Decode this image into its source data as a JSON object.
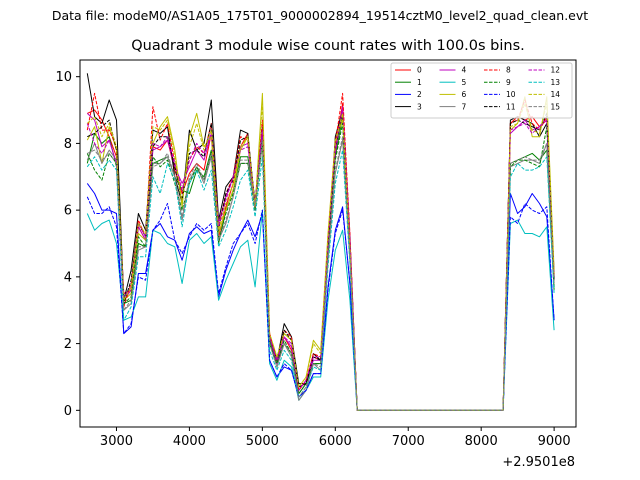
{
  "figure": {
    "suptitle": "Data file: modeM0/AS1A05_175T01_9000002894_19514cztM0_level2_quad_clean.evt",
    "offset_label": "+2.9501e8"
  },
  "chart_data": {
    "type": "line",
    "title": "Quadrant 3 module wise count rates with 100.0s bins.",
    "xlabel": "",
    "ylabel": "",
    "x_offset": 295010000,
    "xlim": [
      2500,
      9300
    ],
    "ylim": [
      -0.5,
      10.5
    ],
    "xticks": [
      3000,
      4000,
      5000,
      6000,
      7000,
      8000,
      9000
    ],
    "yticks": [
      0,
      2,
      4,
      6,
      8,
      10
    ],
    "legend": {
      "position": "top-right",
      "ncol": 4
    },
    "x": [
      2600,
      2700,
      2800,
      2900,
      3000,
      3100,
      3200,
      3300,
      3400,
      3500,
      3600,
      3700,
      3800,
      3900,
      4000,
      4100,
      4200,
      4300,
      4400,
      4500,
      4600,
      4700,
      4800,
      4900,
      5000,
      5100,
      5200,
      5300,
      5400,
      5500,
      5600,
      5700,
      5800,
      5900,
      6000,
      6100,
      6200,
      6300,
      6400,
      6500,
      6600,
      6700,
      6800,
      6900,
      7000,
      7100,
      7200,
      7300,
      7400,
      7500,
      7600,
      7700,
      7800,
      7900,
      8000,
      8100,
      8200,
      8300,
      8400,
      8500,
      8600,
      8700,
      8800,
      8900,
      9000
    ],
    "series": [
      {
        "name": "0",
        "color": "#ff0000",
        "dash": "solid",
        "values": [
          8.9,
          9.0,
          8.7,
          8.2,
          7.6,
          3.5,
          3.6,
          5.5,
          5.1,
          7.9,
          7.8,
          8.1,
          7.2,
          6.5,
          7.1,
          7.4,
          7.2,
          8.3,
          5.2,
          6.1,
          6.8,
          7.9,
          8.3,
          6.0,
          8.4,
          2.3,
          1.5,
          2.2,
          1.8,
          0.6,
          0.9,
          1.6,
          1.5,
          5.0,
          7.8,
          9.2,
          5.2,
          0.0,
          0.0,
          0.0,
          0.0,
          0.0,
          0.0,
          0.0,
          0.0,
          0.0,
          0.0,
          0.0,
          0.0,
          0.0,
          0.0,
          0.0,
          0.0,
          0.0,
          0.0,
          0.0,
          0.0,
          0.0,
          8.6,
          8.8,
          8.7,
          8.8,
          8.5,
          8.7,
          4.0
        ]
      },
      {
        "name": "1",
        "color": "#008000",
        "dash": "solid",
        "values": [
          7.4,
          8.3,
          8.0,
          8.2,
          7.3,
          3.2,
          3.3,
          5.0,
          4.9,
          7.4,
          7.5,
          7.6,
          7.0,
          6.6,
          6.5,
          7.2,
          7.0,
          7.8,
          5.0,
          6.0,
          6.6,
          7.6,
          7.6,
          6.3,
          8.1,
          2.1,
          1.4,
          2.0,
          1.7,
          0.5,
          0.8,
          1.4,
          1.4,
          4.9,
          7.6,
          8.8,
          5.0,
          0.0,
          0.0,
          0.0,
          0.0,
          0.0,
          0.0,
          0.0,
          0.0,
          0.0,
          0.0,
          0.0,
          0.0,
          0.0,
          0.0,
          0.0,
          0.0,
          0.0,
          0.0,
          0.0,
          0.0,
          0.0,
          7.4,
          7.5,
          7.6,
          7.7,
          7.5,
          7.8,
          3.6
        ]
      },
      {
        "name": "2",
        "color": "#0000ff",
        "dash": "solid",
        "values": [
          6.8,
          6.5,
          6.0,
          6.0,
          5.9,
          2.3,
          2.5,
          4.1,
          4.1,
          5.4,
          5.6,
          5.2,
          5.1,
          4.5,
          5.3,
          5.5,
          5.3,
          5.4,
          3.4,
          4.2,
          4.8,
          5.3,
          5.7,
          5.2,
          5.9,
          1.5,
          1.0,
          1.3,
          1.2,
          0.4,
          0.6,
          1.1,
          1.1,
          3.7,
          5.4,
          6.1,
          3.8,
          0.0,
          0.0,
          0.0,
          0.0,
          0.0,
          0.0,
          0.0,
          0.0,
          0.0,
          0.0,
          0.0,
          0.0,
          0.0,
          0.0,
          0.0,
          0.0,
          0.0,
          0.0,
          0.0,
          0.0,
          0.0,
          6.5,
          5.9,
          6.1,
          6.5,
          6.2,
          5.8,
          2.7
        ]
      },
      {
        "name": "3",
        "color": "#000000",
        "dash": "solid",
        "values": [
          10.1,
          8.8,
          8.6,
          9.3,
          8.7,
          3.3,
          4.2,
          5.9,
          5.4,
          8.4,
          8.3,
          8.5,
          7.0,
          6.2,
          8.4,
          7.8,
          8.0,
          9.3,
          5.7,
          6.7,
          7.0,
          8.4,
          8.3,
          6.1,
          8.5,
          2.2,
          1.5,
          2.6,
          2.2,
          0.8,
          0.8,
          1.7,
          1.5,
          4.8,
          8.2,
          9.0,
          5.0,
          0.0,
          0.0,
          0.0,
          0.0,
          0.0,
          0.0,
          0.0,
          0.0,
          0.0,
          0.0,
          0.0,
          0.0,
          0.0,
          0.0,
          0.0,
          0.0,
          0.0,
          0.0,
          0.0,
          0.0,
          0.0,
          8.7,
          8.8,
          8.7,
          8.6,
          8.2,
          8.6,
          3.9
        ]
      },
      {
        "name": "4",
        "color": "#bf00bf",
        "dash": "solid",
        "values": [
          8.9,
          8.7,
          7.9,
          8.1,
          7.4,
          3.3,
          3.6,
          5.5,
          5.1,
          7.8,
          7.9,
          8.1,
          7.3,
          6.8,
          7.3,
          7.8,
          7.5,
          8.3,
          5.6,
          6.4,
          7.0,
          7.9,
          8.0,
          6.1,
          8.4,
          2.2,
          1.4,
          2.2,
          1.9,
          0.6,
          0.9,
          1.5,
          1.5,
          5.0,
          7.7,
          9.1,
          5.2,
          0.0,
          0.0,
          0.0,
          0.0,
          0.0,
          0.0,
          0.0,
          0.0,
          0.0,
          0.0,
          0.0,
          0.0,
          0.0,
          0.0,
          0.0,
          0.0,
          0.0,
          0.0,
          0.0,
          0.0,
          0.0,
          8.3,
          8.5,
          8.7,
          8.4,
          8.5,
          8.8,
          4.1
        ]
      },
      {
        "name": "5",
        "color": "#00bfbf",
        "dash": "solid",
        "values": [
          5.9,
          5.4,
          5.6,
          5.7,
          5.0,
          2.7,
          2.8,
          3.4,
          3.4,
          5.4,
          5.3,
          5.0,
          4.9,
          3.8,
          5.1,
          5.3,
          5.0,
          5.2,
          3.3,
          3.9,
          4.4,
          4.9,
          5.1,
          3.7,
          6.0,
          1.4,
          0.9,
          1.5,
          1.3,
          0.3,
          0.6,
          1.0,
          1.0,
          3.3,
          4.8,
          5.4,
          3.3,
          0.0,
          0.0,
          0.0,
          0.0,
          0.0,
          0.0,
          0.0,
          0.0,
          0.0,
          0.0,
          0.0,
          0.0,
          0.0,
          0.0,
          0.0,
          0.0,
          0.0,
          0.0,
          0.0,
          0.0,
          0.0,
          5.6,
          5.7,
          5.3,
          5.3,
          5.2,
          5.5,
          2.4
        ]
      },
      {
        "name": "6",
        "color": "#bfbf00",
        "dash": "solid",
        "values": [
          8.1,
          8.5,
          7.4,
          8.5,
          7.8,
          3.3,
          3.5,
          5.3,
          5.1,
          8.0,
          8.5,
          8.8,
          7.8,
          6.1,
          8.2,
          8.9,
          7.9,
          8.2,
          5.3,
          6.0,
          6.6,
          7.8,
          8.2,
          6.1,
          9.5,
          2.3,
          1.6,
          2.3,
          2.1,
          0.7,
          1.0,
          2.1,
          1.8,
          5.3,
          8.1,
          8.7,
          4.8,
          0.0,
          0.0,
          0.0,
          0.0,
          0.0,
          0.0,
          0.0,
          0.0,
          0.0,
          0.0,
          0.0,
          0.0,
          0.0,
          0.0,
          0.0,
          0.0,
          0.0,
          0.0,
          0.0,
          0.0,
          0.0,
          8.4,
          8.6,
          9.4,
          8.2,
          8.2,
          9.4,
          4.2
        ]
      },
      {
        "name": "7",
        "color": "#808080",
        "dash": "solid",
        "values": [
          7.5,
          8.0,
          7.4,
          7.8,
          7.5,
          3.0,
          3.2,
          4.8,
          4.9,
          7.4,
          7.4,
          7.6,
          7.0,
          5.7,
          6.9,
          7.3,
          6.8,
          7.6,
          5.1,
          5.6,
          6.4,
          7.4,
          7.4,
          6.1,
          8.0,
          2.0,
          1.3,
          2.0,
          1.6,
          0.3,
          0.6,
          1.4,
          1.2,
          4.5,
          7.1,
          8.1,
          4.5,
          0.0,
          0.0,
          0.0,
          0.0,
          0.0,
          0.0,
          0.0,
          0.0,
          0.0,
          0.0,
          0.0,
          0.0,
          0.0,
          0.0,
          0.0,
          0.0,
          0.0,
          0.0,
          0.0,
          0.0,
          0.0,
          7.3,
          7.4,
          7.5,
          7.5,
          7.4,
          8.0,
          3.8
        ]
      },
      {
        "name": "8",
        "color": "#ff0000",
        "dash": "dashed",
        "values": [
          8.4,
          9.5,
          8.4,
          8.4,
          7.9,
          3.1,
          3.8,
          5.7,
          5.2,
          9.1,
          8.1,
          8.6,
          7.4,
          6.6,
          7.5,
          7.9,
          7.7,
          8.6,
          5.5,
          6.5,
          7.0,
          8.2,
          8.1,
          6.2,
          8.7,
          2.3,
          1.5,
          2.4,
          2.2,
          0.6,
          0.9,
          1.7,
          1.6,
          5.1,
          8.0,
          9.5,
          5.3,
          0.0,
          0.0,
          0.0,
          0.0,
          0.0,
          0.0,
          0.0,
          0.0,
          0.0,
          0.0,
          0.0,
          0.0,
          0.0,
          0.0,
          0.0,
          0.0,
          0.0,
          0.0,
          0.0,
          0.0,
          0.0,
          8.6,
          8.7,
          9.3,
          8.6,
          8.4,
          8.8,
          4.0
        ]
      },
      {
        "name": "9",
        "color": "#008000",
        "dash": "dashed",
        "values": [
          7.7,
          7.2,
          6.9,
          7.7,
          7.4,
          3.2,
          3.4,
          5.2,
          4.9,
          7.6,
          7.3,
          7.5,
          6.8,
          6.0,
          6.8,
          7.3,
          6.9,
          7.7,
          5.1,
          5.9,
          6.5,
          7.4,
          7.4,
          6.0,
          8.1,
          2.0,
          1.4,
          2.1,
          1.7,
          0.5,
          0.8,
          1.4,
          1.4,
          4.8,
          7.5,
          8.6,
          4.8,
          0.0,
          0.0,
          0.0,
          0.0,
          0.0,
          0.0,
          0.0,
          0.0,
          0.0,
          0.0,
          0.0,
          0.0,
          0.0,
          0.0,
          0.0,
          0.0,
          0.0,
          0.0,
          0.0,
          0.0,
          0.0,
          7.3,
          7.5,
          7.5,
          7.4,
          7.3,
          8.5,
          3.7
        ]
      },
      {
        "name": "10",
        "color": "#0000ff",
        "dash": "dashed",
        "values": [
          6.4,
          5.9,
          5.9,
          6.1,
          5.5,
          2.3,
          2.6,
          4.0,
          3.9,
          5.4,
          5.7,
          6.2,
          5.1,
          4.7,
          5.2,
          5.6,
          5.4,
          5.6,
          3.5,
          4.3,
          5.0,
          5.3,
          5.6,
          5.0,
          6.0,
          1.5,
          1.0,
          1.4,
          1.2,
          0.4,
          0.6,
          1.1,
          1.1,
          3.6,
          5.3,
          6.0,
          3.8,
          0.0,
          0.0,
          0.0,
          0.0,
          0.0,
          0.0,
          0.0,
          0.0,
          0.0,
          0.0,
          0.0,
          0.0,
          0.0,
          0.0,
          0.0,
          0.0,
          0.0,
          0.0,
          0.0,
          0.0,
          0.0,
          5.8,
          5.6,
          6.2,
          6.0,
          5.9,
          6.1,
          2.7
        ]
      },
      {
        "name": "11",
        "color": "#000000",
        "dash": "dashed",
        "values": [
          8.2,
          8.3,
          8.5,
          8.7,
          7.8,
          3.2,
          3.9,
          5.6,
          5.2,
          7.9,
          8.2,
          8.2,
          7.3,
          6.3,
          7.7,
          7.8,
          7.6,
          8.6,
          5.4,
          6.5,
          6.9,
          8.1,
          8.2,
          6.2,
          8.4,
          2.2,
          1.5,
          2.4,
          2.1,
          0.7,
          0.8,
          1.6,
          1.5,
          4.9,
          7.9,
          8.9,
          5.1,
          0.0,
          0.0,
          0.0,
          0.0,
          0.0,
          0.0,
          0.0,
          0.0,
          0.0,
          0.0,
          0.0,
          0.0,
          0.0,
          0.0,
          0.0,
          0.0,
          0.0,
          0.0,
          0.0,
          0.0,
          0.0,
          8.6,
          8.7,
          8.6,
          8.5,
          8.4,
          8.9,
          3.9
        ]
      },
      {
        "name": "12",
        "color": "#bf00bf",
        "dash": "dashed",
        "values": [
          8.6,
          8.0,
          7.7,
          8.1,
          7.4,
          3.4,
          3.7,
          5.6,
          5.2,
          8.0,
          7.9,
          8.2,
          7.4,
          6.6,
          7.5,
          8.0,
          7.7,
          8.3,
          5.5,
          6.3,
          7.0,
          7.8,
          7.9,
          6.2,
          8.4,
          2.2,
          1.5,
          2.2,
          2.0,
          0.6,
          0.9,
          1.6,
          1.6,
          5.0,
          7.9,
          9.0,
          5.1,
          0.0,
          0.0,
          0.0,
          0.0,
          0.0,
          0.0,
          0.0,
          0.0,
          0.0,
          0.0,
          0.0,
          0.0,
          0.0,
          0.0,
          0.0,
          0.0,
          0.0,
          0.0,
          0.0,
          0.0,
          0.0,
          8.4,
          8.5,
          8.6,
          8.3,
          8.5,
          8.7,
          4.1
        ]
      },
      {
        "name": "13",
        "color": "#00bfbf",
        "dash": "dashed",
        "values": [
          7.3,
          7.6,
          7.2,
          7.5,
          7.2,
          2.7,
          3.1,
          4.6,
          4.6,
          7.0,
          6.5,
          7.4,
          6.9,
          5.5,
          6.8,
          7.2,
          6.6,
          7.2,
          4.9,
          5.4,
          6.1,
          6.9,
          7.2,
          5.8,
          7.6,
          1.8,
          1.2,
          1.8,
          1.5,
          0.4,
          0.7,
          1.3,
          1.2,
          4.3,
          6.8,
          7.8,
          4.4,
          0.0,
          0.0,
          0.0,
          0.0,
          0.0,
          0.0,
          0.0,
          0.0,
          0.0,
          0.0,
          0.0,
          0.0,
          0.0,
          0.0,
          0.0,
          0.0,
          0.0,
          0.0,
          0.0,
          0.0,
          0.0,
          7.0,
          7.4,
          7.2,
          7.2,
          7.3,
          7.6,
          3.5
        ]
      },
      {
        "name": "14",
        "color": "#bfbf00",
        "dash": "dashed",
        "values": [
          8.6,
          8.8,
          8.2,
          8.6,
          7.9,
          3.3,
          3.7,
          5.6,
          5.3,
          8.5,
          8.4,
          8.7,
          7.6,
          6.2,
          7.9,
          8.6,
          7.8,
          8.4,
          5.4,
          6.2,
          6.8,
          7.9,
          8.2,
          6.1,
          9.2,
          2.3,
          1.6,
          2.3,
          2.1,
          0.7,
          1.0,
          2.0,
          1.7,
          5.2,
          8.0,
          8.9,
          4.9,
          0.0,
          0.0,
          0.0,
          0.0,
          0.0,
          0.0,
          0.0,
          0.0,
          0.0,
          0.0,
          0.0,
          0.0,
          0.0,
          0.0,
          0.0,
          0.0,
          0.0,
          0.0,
          0.0,
          0.0,
          0.0,
          8.5,
          8.6,
          9.2,
          8.4,
          8.3,
          9.2,
          4.1
        ]
      },
      {
        "name": "15",
        "color": "#808080",
        "dash": "dashed",
        "values": [
          7.7,
          7.8,
          7.5,
          7.7,
          7.4,
          3.0,
          3.3,
          4.9,
          4.9,
          7.3,
          7.4,
          7.7,
          7.0,
          5.8,
          7.0,
          7.4,
          6.9,
          7.7,
          5.1,
          5.7,
          6.4,
          7.5,
          7.5,
          6.1,
          8.1,
          2.0,
          1.3,
          2.0,
          1.7,
          0.4,
          0.7,
          1.4,
          1.3,
          4.6,
          7.2,
          8.2,
          4.6,
          0.0,
          0.0,
          0.0,
          0.0,
          0.0,
          0.0,
          0.0,
          0.0,
          0.0,
          0.0,
          0.0,
          0.0,
          0.0,
          0.0,
          0.0,
          0.0,
          0.0,
          0.0,
          0.0,
          0.0,
          0.0,
          7.4,
          7.5,
          7.6,
          7.5,
          7.5,
          8.0,
          3.8
        ]
      }
    ]
  }
}
